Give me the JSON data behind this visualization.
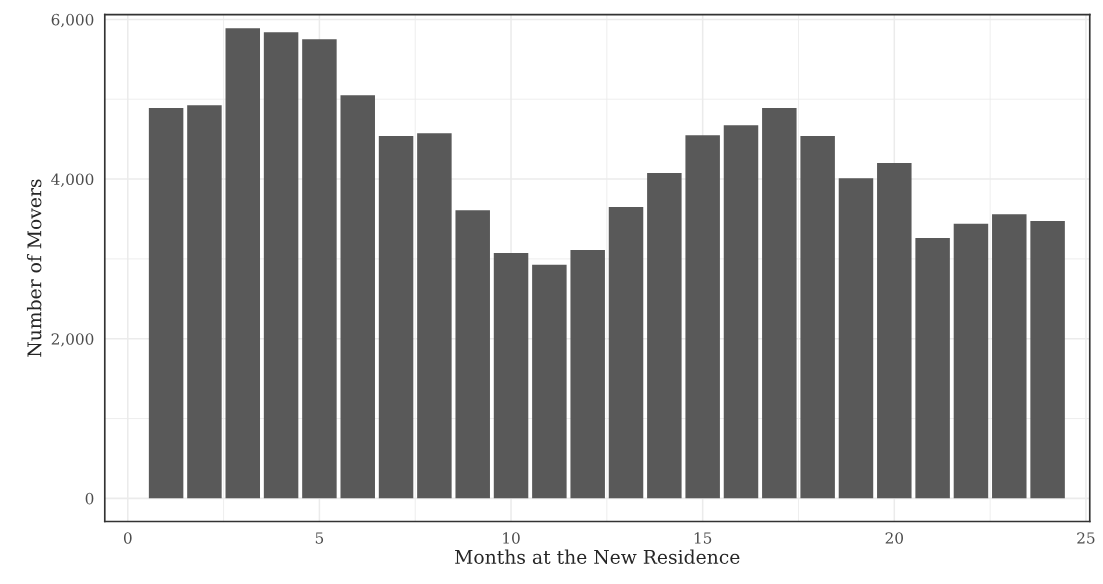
{
  "chart_data": {
    "type": "bar",
    "xlabel": "Months at the New Residence",
    "ylabel": "Number of Movers",
    "x": [
      1,
      2,
      3,
      4,
      5,
      6,
      7,
      8,
      9,
      10,
      11,
      12,
      13,
      14,
      15,
      16,
      17,
      18,
      19,
      20,
      21,
      22,
      23,
      24
    ],
    "values": [
      4890,
      4925,
      5890,
      5840,
      5750,
      5050,
      4540,
      4575,
      3610,
      3075,
      2925,
      3110,
      3650,
      4075,
      4550,
      4675,
      4890,
      4540,
      4010,
      4200,
      3260,
      3440,
      3560,
      3475
    ],
    "color": "#595959",
    "xlim": [
      -0.6,
      25.1
    ],
    "xticks": [
      0,
      5,
      10,
      15,
      20,
      25
    ],
    "ylim": [
      -290,
      6060
    ],
    "yticks": [
      0,
      {
        "value": 2000,
        "label": "2,000"
      },
      {
        "value": 4000,
        "label": "4,000"
      },
      {
        "value": 6000,
        "label": "6,000"
      }
    ],
    "grid": true
  }
}
